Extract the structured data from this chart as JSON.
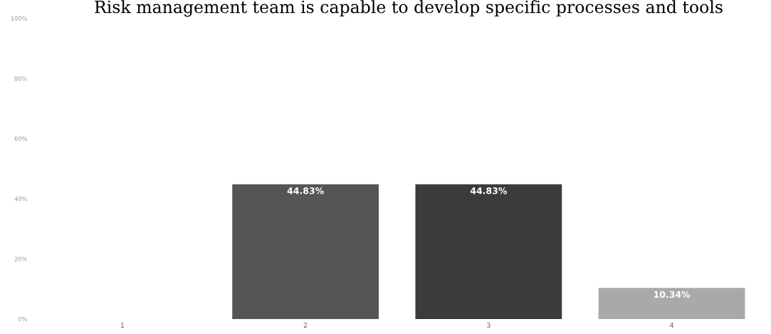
{
  "chart_data": {
    "type": "bar",
    "title": "Risk management team is capable to develop specific processes and tools",
    "categories": [
      "1",
      "2",
      "3",
      "4"
    ],
    "values": [
      0,
      44.83,
      44.83,
      10.34
    ],
    "colors": [
      "#555555",
      "#555555",
      "#3b3b3b",
      "#a9a9a9"
    ],
    "value_labels": [
      null,
      "44.83%",
      "44.83%",
      "10.34%"
    ],
    "ylim": [
      0,
      100
    ],
    "yticks": [
      {
        "value": 0,
        "label": "0%"
      },
      {
        "value": 20,
        "label": "20%"
      },
      {
        "value": 40,
        "label": "40%"
      },
      {
        "value": 60,
        "label": "60%"
      },
      {
        "value": 80,
        "label": "80%"
      },
      {
        "value": 100,
        "label": "100%"
      }
    ],
    "grid": false
  }
}
